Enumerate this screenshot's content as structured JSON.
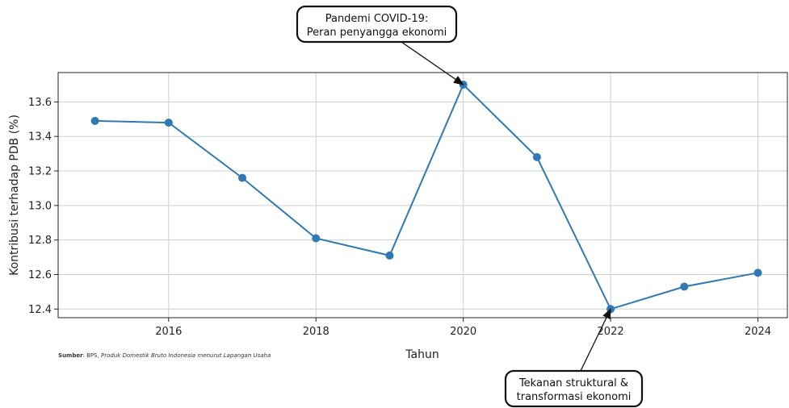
{
  "chart_data": {
    "type": "line",
    "xlabel": "Tahun",
    "ylabel": "Kontribusi terhadap PDB (%)",
    "xlim": [
      2014.5,
      2024.4
    ],
    "ylim": [
      12.35,
      13.77
    ],
    "xticks": [
      2016,
      2018,
      2020,
      2022,
      2024
    ],
    "yticks": [
      12.4,
      12.6,
      12.8,
      13.0,
      13.2,
      13.4,
      13.6
    ],
    "grid": true,
    "series": [
      {
        "x": [
          2015,
          2016,
          2017,
          2018,
          2019,
          2020,
          2021,
          2022,
          2023,
          2024
        ],
        "values": [
          13.49,
          13.48,
          13.16,
          12.81,
          12.71,
          13.7,
          13.28,
          12.4,
          12.53,
          12.61
        ],
        "color": "#2f7ab5"
      }
    ],
    "annotations": [
      {
        "lines": [
          "Pandemi COVID-19:",
          "Peran penyangga ekonomi"
        ],
        "target_x": 2020,
        "target_y": 13.7
      },
      {
        "lines": [
          "Tekanan struktural &",
          "transformasi ekonomi"
        ],
        "target_x": 2022,
        "target_y": 12.4
      }
    ],
    "source": {
      "label": "Sumber",
      "text": ": BPS, ",
      "title": "Produk Domestik Bruto Indonesia menurut Lapangan Usaha"
    }
  }
}
